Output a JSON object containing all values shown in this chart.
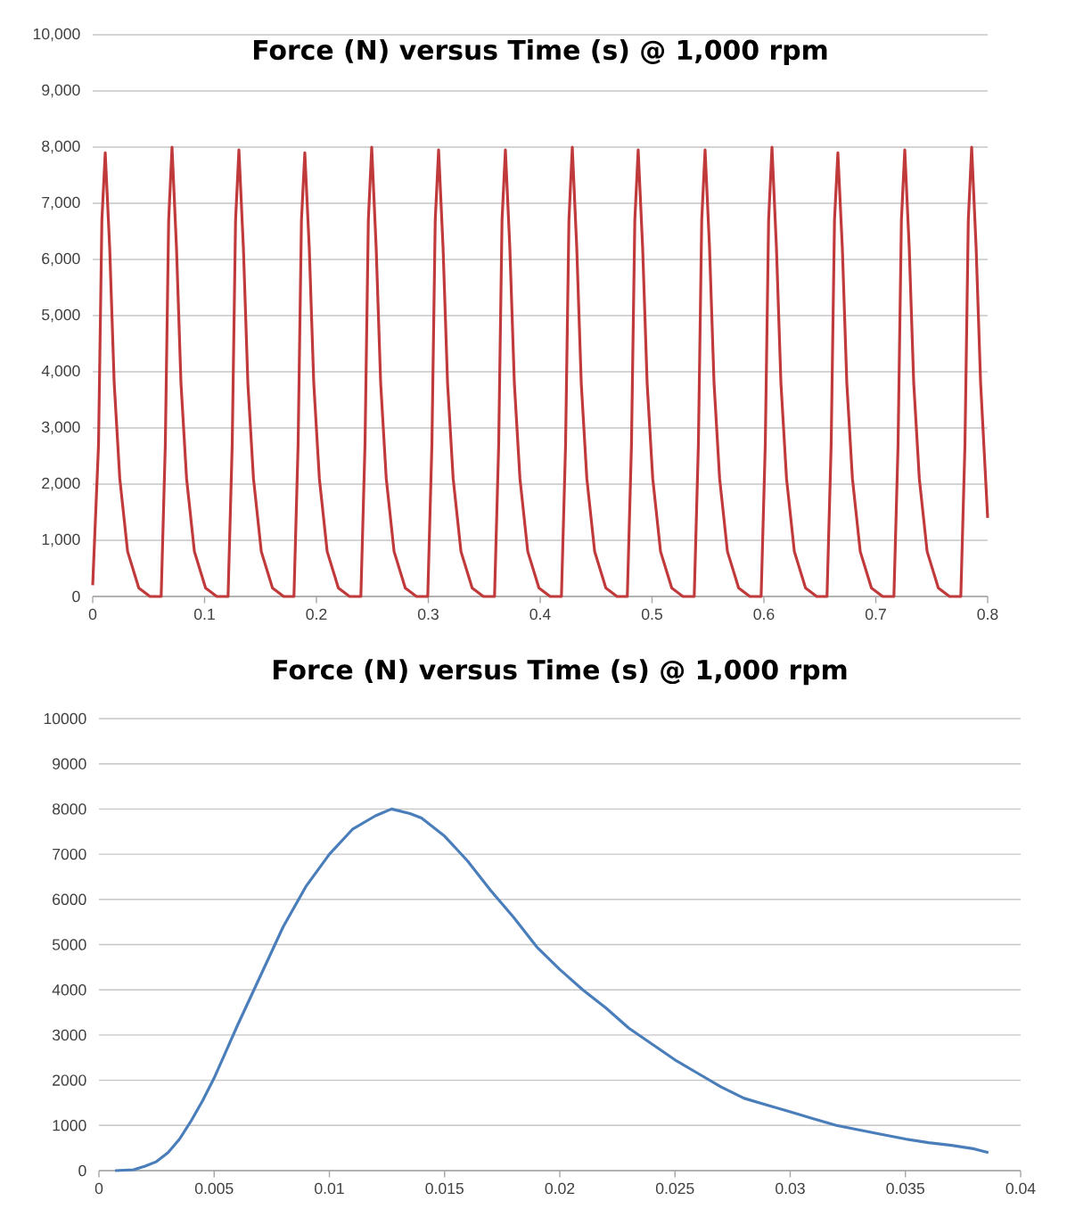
{
  "chart_data": [
    {
      "type": "line",
      "title": "Force (N) versus Time (s) @ 1,000 rpm",
      "color": "#c0393b",
      "grid": "y",
      "xlim": [
        0,
        0.8
      ],
      "ylim": [
        0,
        10000
      ],
      "xticks": [
        0,
        0.1,
        0.2,
        0.3,
        0.4,
        0.5,
        0.6,
        0.7,
        0.8
      ],
      "yticks": [
        0,
        {
          "value": 1000,
          "label": "1,000"
        },
        {
          "value": 2000,
          "label": "2,000"
        },
        {
          "value": 3000,
          "label": "3,000"
        },
        {
          "value": 4000,
          "label": "4,000"
        },
        {
          "value": 5000,
          "label": "5,000"
        },
        {
          "value": 6000,
          "label": "6,000"
        },
        {
          "value": 7000,
          "label": "7,000"
        },
        {
          "value": 8000,
          "label": "8,000"
        },
        {
          "value": 9000,
          "label": "9,000"
        },
        {
          "value": 10000,
          "label": "10,000"
        }
      ],
      "x": [
        0,
        0.0052,
        0.0082,
        0.0112,
        0.0152,
        0.0192,
        0.0242,
        0.0312,
        0.0412,
        0.0512,
        0.0612,
        0.0649,
        0.0679,
        0.0709,
        0.0749,
        0.0789,
        0.0839,
        0.0909,
        0.1009,
        0.1109,
        0.121,
        0.1247,
        0.1277,
        0.1307,
        0.1347,
        0.1387,
        0.1437,
        0.1507,
        0.1607,
        0.1707,
        0.1799,
        0.1836,
        0.1866,
        0.1896,
        0.1936,
        0.1976,
        0.2026,
        0.2096,
        0.2196,
        0.2296,
        0.2397,
        0.2434,
        0.2464,
        0.2494,
        0.2534,
        0.2574,
        0.2624,
        0.2694,
        0.2794,
        0.2894,
        0.2995,
        0.3032,
        0.3062,
        0.3092,
        0.3132,
        0.3172,
        0.3222,
        0.3292,
        0.3392,
        0.3492,
        0.3592,
        0.3629,
        0.3659,
        0.3689,
        0.3729,
        0.3769,
        0.3819,
        0.3889,
        0.3989,
        0.4089,
        0.419,
        0.4227,
        0.4257,
        0.4287,
        0.4327,
        0.4367,
        0.4417,
        0.4487,
        0.4587,
        0.4687,
        0.4779,
        0.4816,
        0.4846,
        0.4876,
        0.4916,
        0.4956,
        0.5006,
        0.5076,
        0.5176,
        0.5276,
        0.5377,
        0.5414,
        0.5444,
        0.5474,
        0.5514,
        0.5554,
        0.5604,
        0.5674,
        0.5774,
        0.5874,
        0.5975,
        0.6012,
        0.6042,
        0.6072,
        0.6112,
        0.6152,
        0.6202,
        0.6272,
        0.6372,
        0.6472,
        0.6564,
        0.6601,
        0.6631,
        0.6661,
        0.6701,
        0.6741,
        0.6791,
        0.6861,
        0.6961,
        0.7061,
        0.7162,
        0.7199,
        0.7229,
        0.7259,
        0.7299,
        0.7339,
        0.7389,
        0.7459,
        0.7559,
        0.7659,
        0.776,
        0.7797,
        0.7827,
        0.7857,
        0.7897,
        0.7937,
        0.8
      ],
      "values": [
        200,
        2700,
        6700,
        7900,
        6200,
        3800,
        2100,
        800,
        150,
        0,
        0,
        2700,
        6700,
        8000,
        6200,
        3800,
        2100,
        800,
        150,
        0,
        0,
        2700,
        6700,
        7950,
        6200,
        3800,
        2100,
        800,
        150,
        0,
        0,
        2700,
        6700,
        7900,
        6200,
        3800,
        2100,
        800,
        150,
        0,
        0,
        2700,
        6700,
        8000,
        6200,
        3800,
        2100,
        800,
        150,
        0,
        0,
        2700,
        6700,
        7950,
        6200,
        3800,
        2100,
        800,
        150,
        0,
        0,
        2700,
        6700,
        7950,
        6200,
        3800,
        2100,
        800,
        150,
        0,
        0,
        2700,
        6700,
        8000,
        6200,
        3800,
        2100,
        800,
        150,
        0,
        0,
        2700,
        6700,
        7950,
        6200,
        3800,
        2100,
        800,
        150,
        0,
        0,
        2700,
        6700,
        7950,
        6200,
        3800,
        2100,
        800,
        150,
        0,
        0,
        2700,
        6700,
        8000,
        6200,
        3800,
        2100,
        800,
        150,
        0,
        0,
        2700,
        6700,
        7900,
        6200,
        3800,
        2100,
        800,
        150,
        0,
        0,
        2700,
        6700,
        7950,
        6200,
        3800,
        2100,
        800,
        150,
        0,
        0,
        2700,
        6700,
        8000,
        6200,
        3800,
        1400
      ]
    },
    {
      "type": "line",
      "title": "Force (N) versus Time (s) @ 1,000 rpm",
      "color": "#4a7ebb",
      "grid": "y",
      "xlim": [
        0,
        0.04
      ],
      "ylim": [
        0,
        10000
      ],
      "xticks": [
        0,
        0.005,
        0.01,
        0.015,
        0.02,
        0.025,
        0.03,
        0.035,
        0.04
      ],
      "yticks": [
        0,
        1000,
        2000,
        3000,
        4000,
        5000,
        6000,
        7000,
        8000,
        9000,
        10000
      ],
      "x": [
        0.0007,
        0.0015,
        0.002,
        0.0025,
        0.003,
        0.0035,
        0.004,
        0.0045,
        0.005,
        0.006,
        0.007,
        0.008,
        0.009,
        0.01,
        0.011,
        0.012,
        0.0127,
        0.0135,
        0.014,
        0.015,
        0.016,
        0.017,
        0.018,
        0.019,
        0.02,
        0.021,
        0.022,
        0.023,
        0.024,
        0.025,
        0.026,
        0.027,
        0.028,
        0.029,
        0.03,
        0.031,
        0.032,
        0.033,
        0.034,
        0.035,
        0.036,
        0.037,
        0.038,
        0.0386
      ],
      "values": [
        0,
        20,
        100,
        200,
        400,
        700,
        1100,
        1550,
        2050,
        3200,
        4300,
        5400,
        6300,
        7000,
        7550,
        7850,
        8000,
        7900,
        7800,
        7400,
        6850,
        6200,
        5600,
        4950,
        4450,
        4000,
        3600,
        3150,
        2800,
        2450,
        2150,
        1850,
        1600,
        1450,
        1300,
        1150,
        1000,
        900,
        800,
        700,
        620,
        560,
        480,
        400
      ]
    }
  ]
}
